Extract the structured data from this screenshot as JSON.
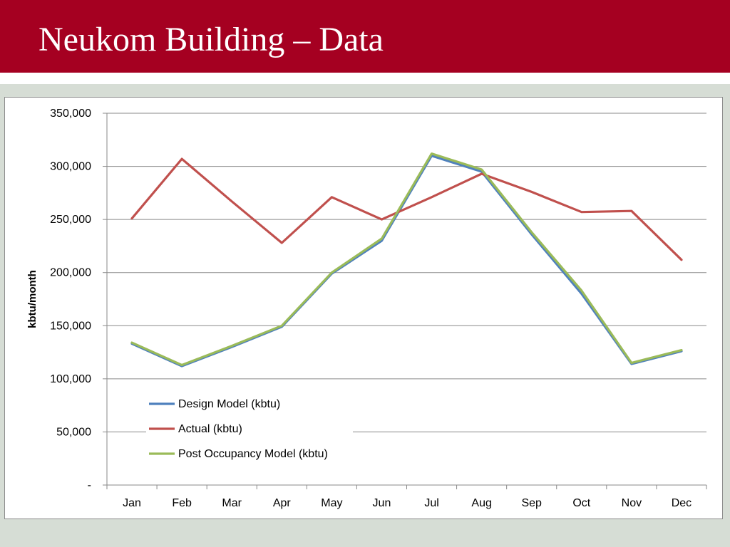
{
  "slide": {
    "title": "Neukom Building – Data"
  },
  "colors": {
    "title_bar": "#a50021",
    "background": "#d6ddd5"
  },
  "chart_data": {
    "type": "line",
    "title": "",
    "xlabel": "",
    "ylabel": "kbtu/month",
    "categories": [
      "Jan",
      "Feb",
      "Mar",
      "Apr",
      "May",
      "Jun",
      "Jul",
      "Aug",
      "Sep",
      "Oct",
      "Nov",
      "Dec"
    ],
    "ylim": [
      0,
      350000
    ],
    "yticks": [
      0,
      50000,
      100000,
      150000,
      200000,
      250000,
      300000,
      350000
    ],
    "ytick_labels": [
      "-",
      "50,000",
      "100,000",
      "150,000",
      "200,000",
      "250,000",
      "300,000",
      "350,000"
    ],
    "grid": true,
    "legend_position": "bottom-left",
    "series": [
      {
        "name": "Design Model (kbtu)",
        "color": "#4f81bd",
        "values": [
          133000,
          112000,
          130000,
          149000,
          199000,
          230000,
          310000,
          295000,
          236000,
          180000,
          114000,
          126000
        ]
      },
      {
        "name": "Actual (kbtu)",
        "color": "#c0504d",
        "values": [
          251000,
          307000,
          267000,
          228000,
          271000,
          250000,
          271000,
          293000,
          276000,
          257000,
          258000,
          212000
        ]
      },
      {
        "name": "Post Occupancy Model (kbtu)",
        "color": "#9bbb59",
        "values": [
          134000,
          113000,
          131000,
          150000,
          200000,
          232000,
          312000,
          297000,
          238000,
          183000,
          115000,
          127000
        ]
      }
    ]
  }
}
